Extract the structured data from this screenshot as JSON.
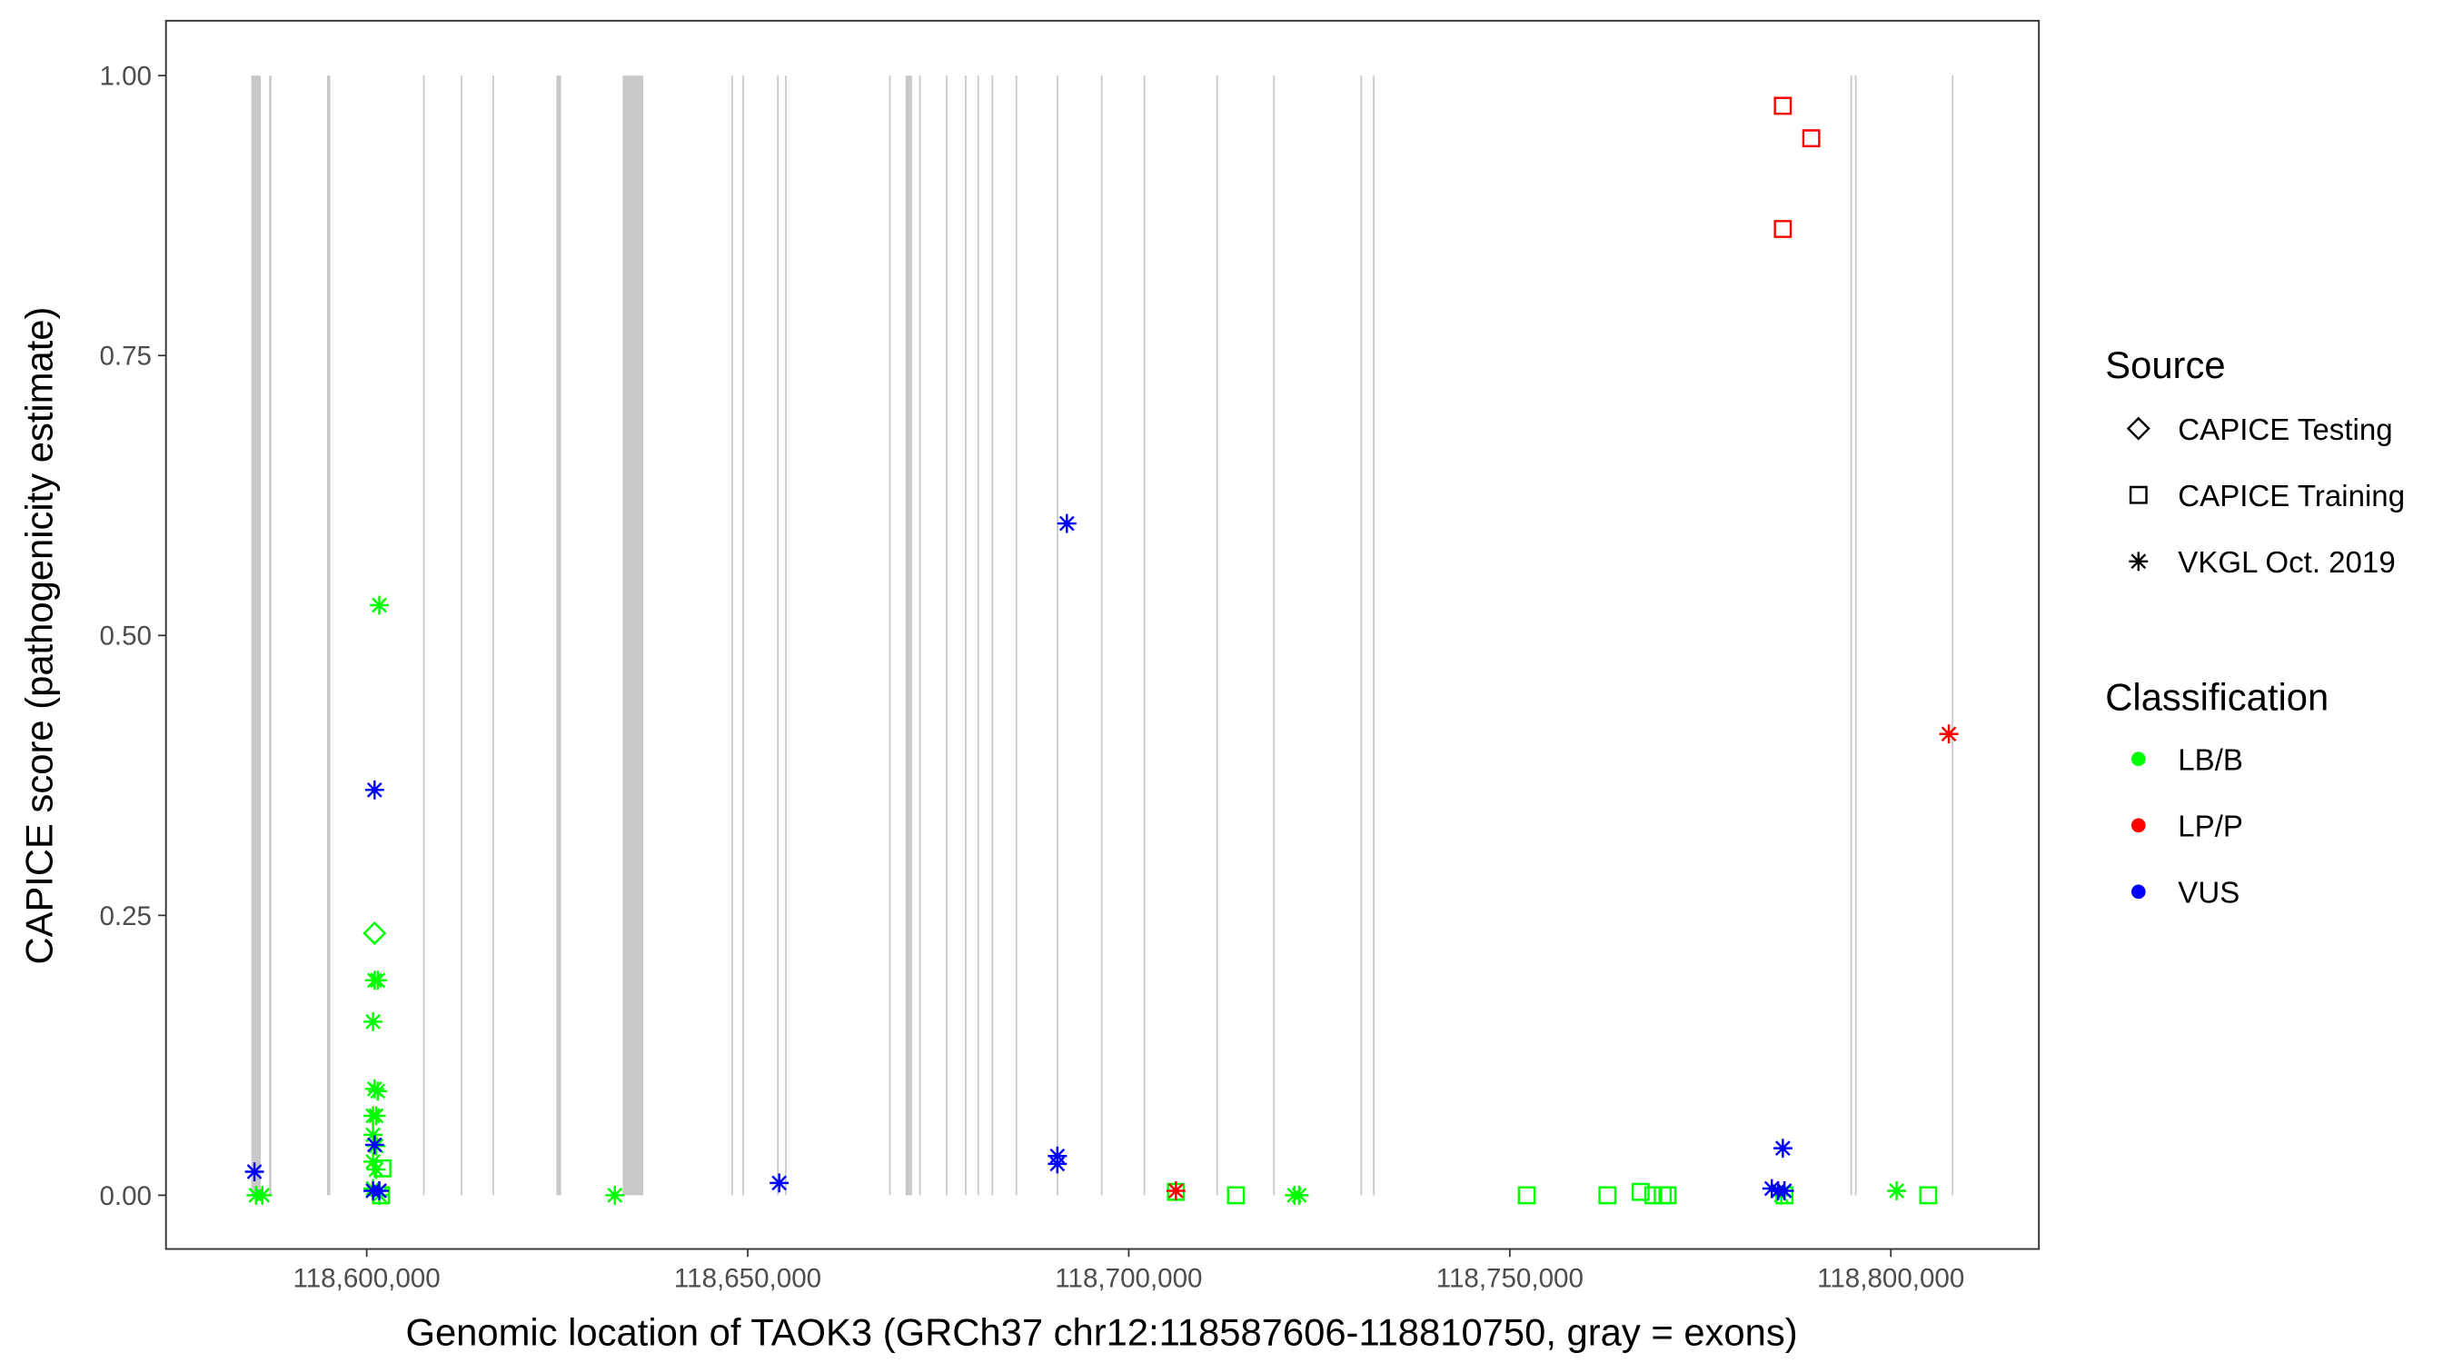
{
  "chart_data": {
    "type": "scatter",
    "x_label": "Genomic location of TAOK3 (GRCh37 chr12:118587606-118810750, gray = exons)",
    "y_label": "CAPICE score (pathogenicity estimate)",
    "xlim": [
      118573660,
      118819430
    ],
    "ylim": [
      -0.048,
      1.049
    ],
    "xticks": [
      {
        "value": 118600000,
        "label": "118,600,000"
      },
      {
        "value": 118650000,
        "label": "118,650,000"
      },
      {
        "value": 118700000,
        "label": "118,700,000"
      },
      {
        "value": 118750000,
        "label": "118,750,000"
      },
      {
        "value": 118800000,
        "label": "118,800,000"
      }
    ],
    "yticks": [
      {
        "value": 0,
        "label": "0.00"
      },
      {
        "value": 0.25,
        "label": "0.25"
      },
      {
        "value": 0.5,
        "label": "0.50"
      },
      {
        "value": 0.75,
        "label": "0.75"
      },
      {
        "value": 1,
        "label": "1.00"
      }
    ],
    "grid": false,
    "exon_color": "#c8c8c8",
    "exons": [
      [
        118584860,
        118586100
      ],
      [
        118587200,
        118587500
      ],
      [
        118594800,
        118595230
      ],
      [
        118607400,
        118607600
      ],
      [
        118612350,
        118612550
      ],
      [
        118616500,
        118616700
      ],
      [
        118624890,
        118625510
      ],
      [
        118633600,
        118636300
      ],
      [
        118647850,
        118648050
      ],
      [
        118649300,
        118649500
      ],
      [
        118653850,
        118654050
      ],
      [
        118654900,
        118655100
      ],
      [
        118668550,
        118668750
      ],
      [
        118670720,
        118671550
      ],
      [
        118672500,
        118672700
      ],
      [
        118676000,
        118676200
      ],
      [
        118678500,
        118678700
      ],
      [
        118680150,
        118680350
      ],
      [
        118682000,
        118682200
      ],
      [
        118685150,
        118685350
      ],
      [
        118690550,
        118690750
      ],
      [
        118696350,
        118696550
      ],
      [
        118701950,
        118702150
      ],
      [
        118711500,
        118711700
      ],
      [
        118718950,
        118719150
      ],
      [
        118730400,
        118730600
      ],
      [
        118732050,
        118732250
      ],
      [
        118794700,
        118794900
      ],
      [
        118795300,
        118795500
      ],
      [
        118808000,
        118808200
      ]
    ],
    "shape_legend": {
      "title": "Source",
      "items": [
        {
          "label": "CAPICE Testing",
          "shape": "diamond"
        },
        {
          "label": "CAPICE Training",
          "shape": "square"
        },
        {
          "label": "VKGL Oct. 2019",
          "shape": "asterisk"
        }
      ]
    },
    "color_legend": {
      "title": "Classification",
      "items": [
        {
          "label": "LB/B",
          "color": "#00ff00"
        },
        {
          "label": "LP/P",
          "color": "#ff0000"
        },
        {
          "label": "VUS",
          "color": "#0000ff"
        }
      ]
    },
    "series": [
      {
        "source": "CAPICE Training",
        "classification": "LB/B",
        "x": [
          118602070,
          118601870,
          118714070,
          118752230,
          118762810,
          118767170,
          118768830,
          118770070,
          118770690,
          118786040,
          118804910,
          118706190
        ],
        "values": [
          0.024,
          0,
          0,
          0,
          0,
          0.003,
          0,
          0,
          0,
          0,
          0,
          0.003
        ]
      },
      {
        "source": "CAPICE Training",
        "classification": "LP/P",
        "x": [
          118785830,
          118789560,
          118785830
        ],
        "values": [
          0.973,
          0.944,
          0.863
        ]
      },
      {
        "source": "CAPICE Testing",
        "classification": "LB/B",
        "x": [
          118601040
        ],
        "values": [
          0.234
        ]
      },
      {
        "source": "VKGL Oct. 2019",
        "classification": "LB/B",
        "x": [
          118585480,
          118586310,
          118601660,
          118601040,
          118601450,
          118600830,
          118601040,
          118601450,
          118600830,
          118601240,
          118600830,
          118601240,
          118600830,
          118601240,
          118600830,
          118601660,
          118632560,
          118721740,
          118722360,
          118800760,
          118785620
        ],
        "values": [
          0,
          0,
          0.527,
          0.192,
          0.192,
          0.155,
          0.095,
          0.093,
          0.071,
          0.071,
          0.054,
          0.044,
          0.03,
          0.023,
          0.006,
          0,
          0,
          0,
          0,
          0.004,
          0
        ]
      },
      {
        "source": "VKGL Oct. 2019",
        "classification": "VUS",
        "x": [
          118585270,
          118601040,
          118601040,
          118600830,
          118601660,
          118654130,
          118691880,
          118690630,
          118690630,
          118784380,
          118785210,
          118785830,
          118786040
        ],
        "values": [
          0.021,
          0.362,
          0.045,
          0.004,
          0.004,
          0.011,
          0.6,
          0.035,
          0.028,
          0.006,
          0.004,
          0.042,
          0.004
        ]
      },
      {
        "source": "VKGL Oct. 2019",
        "classification": "LP/P",
        "x": [
          118706190,
          118807610
        ],
        "values": [
          0.004,
          0.412
        ]
      }
    ]
  }
}
